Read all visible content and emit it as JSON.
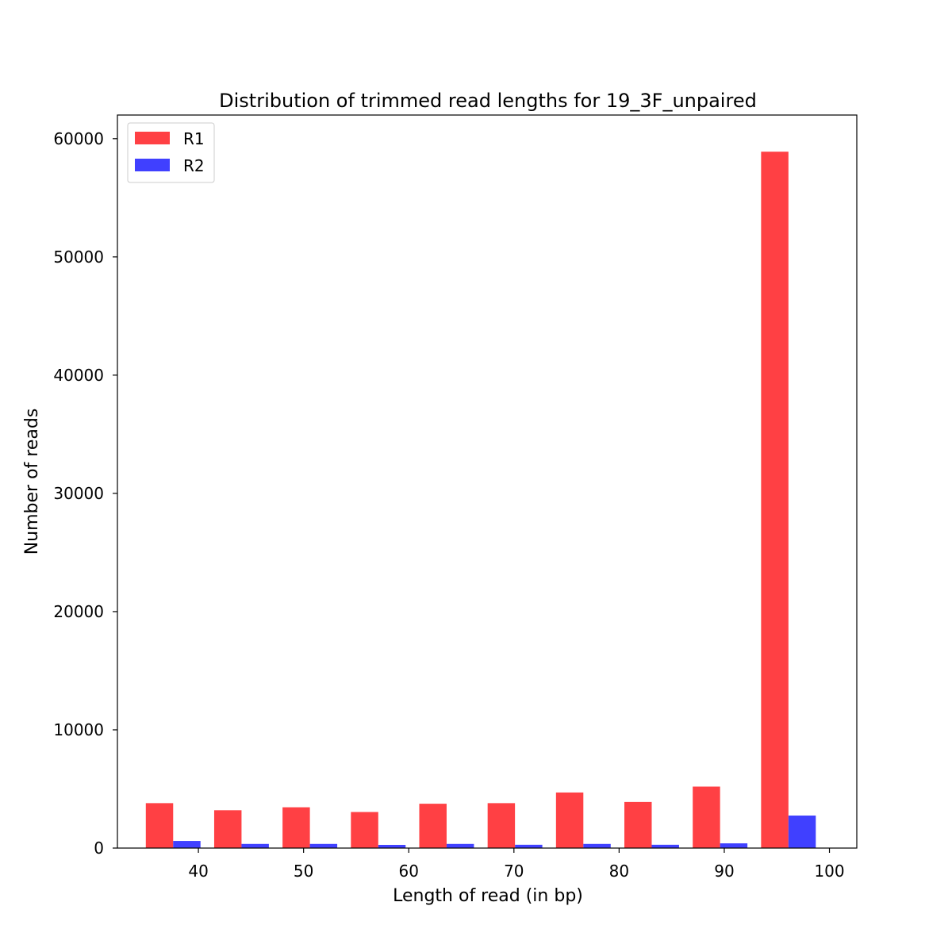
{
  "chart_data": {
    "type": "bar",
    "title": "Distribution of trimmed read lengths for 19_3F_unpaired",
    "xlabel": "Length of read (in bp)",
    "ylabel": "Number of reads",
    "xlim": [
      32.3,
      102.6
    ],
    "ylim": [
      0,
      62000
    ],
    "xticks": [
      40,
      50,
      60,
      70,
      80,
      90,
      100
    ],
    "yticks": [
      0,
      10000,
      20000,
      30000,
      40000,
      50000,
      60000
    ],
    "bin_edges": [
      35,
      41.5,
      48,
      54.5,
      61,
      67.5,
      74,
      80.5,
      87,
      93.5,
      100
    ],
    "grid": false,
    "legend": "top-left",
    "series": [
      {
        "name": "R1",
        "color": "#ff4044",
        "values": [
          3800,
          3200,
          3450,
          3050,
          3750,
          3800,
          4700,
          3900,
          5200,
          58900
        ]
      },
      {
        "name": "R2",
        "color": "#4040ff",
        "values": [
          600,
          350,
          350,
          270,
          350,
          280,
          350,
          280,
          400,
          2750
        ]
      }
    ]
  }
}
